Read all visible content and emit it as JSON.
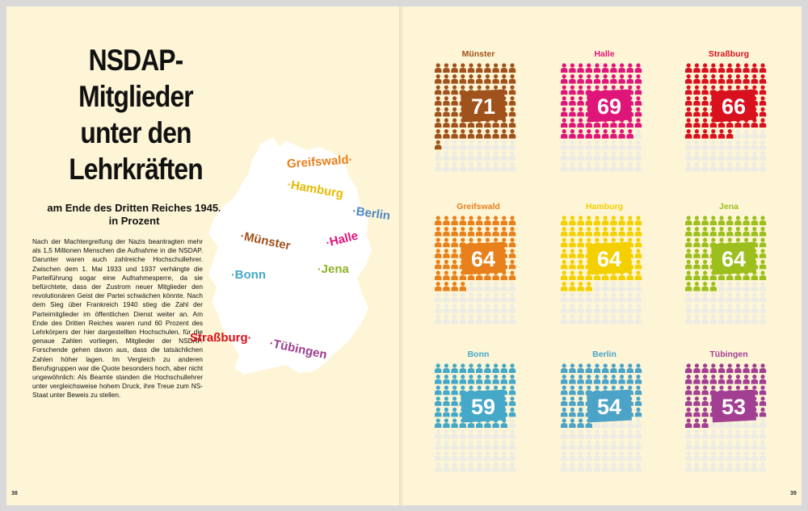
{
  "spread": {
    "page_left_number": "38",
    "page_right_number": "39"
  },
  "article": {
    "title_lines": [
      "NSDAP-",
      "Mitglieder",
      "unter den",
      "Lehrkräften"
    ],
    "subtitle_lines": [
      "am Ende des Dritten Reiches 1945,",
      "in Prozent"
    ],
    "body": "Nach der Machtergreifung der Nazis beantragten mehr als 1,5 Millionen Menschen die Aufnahme in die NSDAP. Darunter waren auch zahlreiche Hochschullehrer. Zwischen dem 1. Mai 1933 und 1937 verhängte die Parteiführung sogar eine Aufnahmesperre, da sie befürchtete, dass der Zustrom neuer Mitglieder den revolutionären Geist der Partei schwächen könnte. Nach dem Sieg über Frankreich 1940 stieg die Zahl der Parteimitglieder im öffentlichen Dienst weiter an. Am Ende des Dritten Reiches waren rund 60 Prozent des Lehrkörpers der hier dargestellten Hochschulen, für die genaue Zahlen vorliegen, Mitglieder der NSDAP. Forschende gehen davon aus, dass die tatsächlichen Zahlen höher lagen. Im Vergleich zu anderen Berufsgruppen war die Quote besonders hoch, aber nicht ungewöhnlich: Als Beamte standen die Hochschullehrer unter vergleichsweise hohem Druck, ihre Treue zum NS-Staat unter Beweis zu stellen."
  },
  "map": {
    "labels": [
      {
        "name": "Greifswald",
        "color": "#e8801c"
      },
      {
        "name": "Hamburg",
        "color": "#e8b900"
      },
      {
        "name": "Berlin",
        "color": "#4e86c4"
      },
      {
        "name": "Münster",
        "color": "#a0521c"
      },
      {
        "name": "Halle",
        "color": "#e0157a"
      },
      {
        "name": "Bonn",
        "color": "#45a8c8"
      },
      {
        "name": "Jena",
        "color": "#8cb526"
      },
      {
        "name": "Straßburg",
        "color": "#d9101e"
      },
      {
        "name": "Tübingen",
        "color": "#9b3d8f"
      }
    ]
  },
  "chart_data": {
    "type": "pictogram",
    "total_icons": 100,
    "unit": "Prozent",
    "empty_color": "#ecebe4",
    "categories": [
      "Münster",
      "Halle",
      "Straßburg",
      "Greifswald",
      "Hamburg",
      "Jena",
      "Bonn",
      "Berlin",
      "Tübingen"
    ],
    "values": [
      71,
      69,
      66,
      64,
      64,
      64,
      59,
      54,
      53
    ],
    "colors": [
      "#a0521c",
      "#e0157a",
      "#d9101e",
      "#e8801c",
      "#f4d000",
      "#9cbf1e",
      "#45a8c8",
      "#4ba3c7",
      "#a23f92"
    ],
    "value_labels": [
      "71",
      "69",
      "66",
      "64",
      "64",
      "64",
      "59",
      "54",
      "53"
    ]
  }
}
